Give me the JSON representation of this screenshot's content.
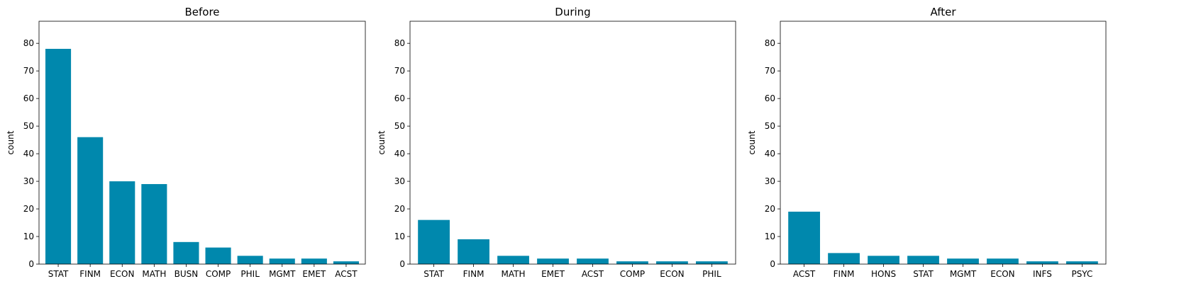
{
  "bar_color": "#0088ad",
  "chart_data": [
    {
      "type": "bar",
      "title": "Before",
      "xlabel": "",
      "ylabel": "count",
      "ylim": [
        0,
        88
      ],
      "yticks": [
        0,
        10,
        20,
        30,
        40,
        50,
        60,
        70,
        80
      ],
      "categories": [
        "STAT",
        "FINM",
        "ECON",
        "MATH",
        "BUSN",
        "COMP",
        "PHIL",
        "MGMT",
        "EMET",
        "ACST"
      ],
      "values": [
        78,
        46,
        30,
        29,
        8,
        6,
        3,
        2,
        2,
        1
      ]
    },
    {
      "type": "bar",
      "title": "During",
      "xlabel": "",
      "ylabel": "count",
      "ylim": [
        0,
        88
      ],
      "yticks": [
        0,
        10,
        20,
        30,
        40,
        50,
        60,
        70,
        80
      ],
      "categories": [
        "STAT",
        "FINM",
        "MATH",
        "EMET",
        "ACST",
        "COMP",
        "ECON",
        "PHIL"
      ],
      "values": [
        16,
        9,
        3,
        2,
        2,
        1,
        1,
        1
      ]
    },
    {
      "type": "bar",
      "title": "After",
      "xlabel": "",
      "ylabel": "count",
      "ylim": [
        0,
        88
      ],
      "yticks": [
        0,
        10,
        20,
        30,
        40,
        50,
        60,
        70,
        80
      ],
      "categories": [
        "ACST",
        "FINM",
        "HONS",
        "STAT",
        "MGMT",
        "ECON",
        "INFS",
        "PSYC"
      ],
      "values": [
        19,
        4,
        3,
        3,
        2,
        2,
        1,
        1
      ]
    }
  ]
}
